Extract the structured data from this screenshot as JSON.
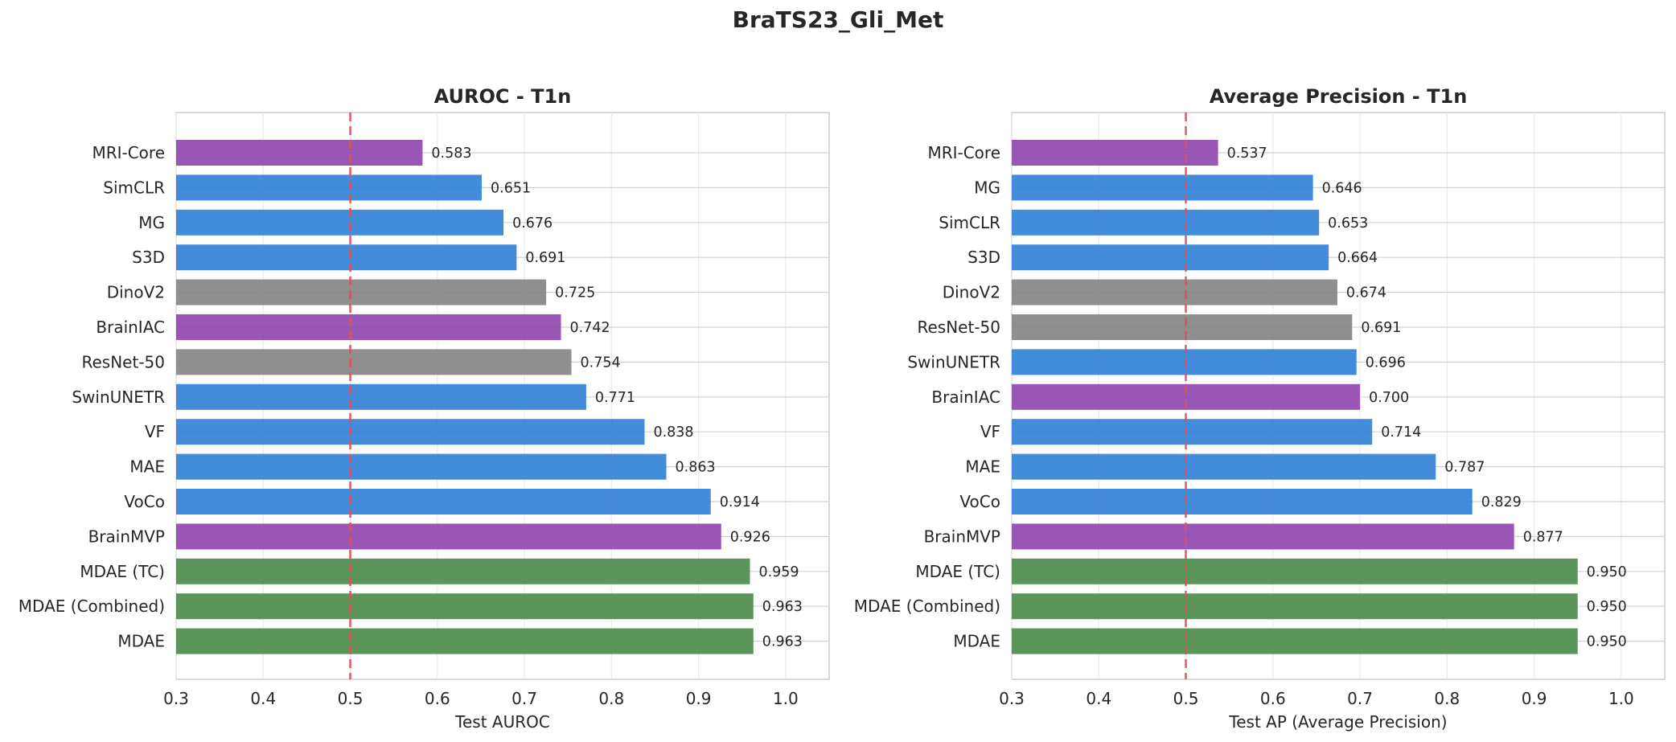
{
  "figure_title": "BraTS23_Gli_Met",
  "colors": {
    "purple": "#8e44ad",
    "blue": "#2f80d6",
    "gray": "#838383",
    "green": "#4a8a48",
    "baseline": "#e0505a"
  },
  "chart_data": [
    {
      "type": "bar",
      "orientation": "horizontal",
      "title": "AUROC - T1n",
      "xlabel": "Test AUROC",
      "ylabel": "",
      "xlim": [
        0.3,
        1.05
      ],
      "xticks": [
        "0.3",
        "0.4",
        "0.5",
        "0.6",
        "0.7",
        "0.8",
        "0.9",
        "1.0"
      ],
      "grid": true,
      "reference_line": 0.5,
      "categories": [
        "MRI-Core",
        "SimCLR",
        "MG",
        "S3D",
        "DinoV2",
        "BrainIAC",
        "ResNet-50",
        "SwinUNETR",
        "VF",
        "MAE",
        "VoCo",
        "BrainMVP",
        "MDAE (TC)",
        "MDAE (Combined)",
        "MDAE"
      ],
      "values": [
        0.583,
        0.651,
        0.676,
        0.691,
        0.725,
        0.742,
        0.754,
        0.771,
        0.838,
        0.863,
        0.914,
        0.926,
        0.959,
        0.963,
        0.963
      ],
      "value_labels": [
        "0.583",
        "0.651",
        "0.676",
        "0.691",
        "0.725",
        "0.742",
        "0.754",
        "0.771",
        "0.838",
        "0.863",
        "0.914",
        "0.926",
        "0.959",
        "0.963",
        "0.963"
      ],
      "bar_colors": [
        "purple",
        "blue",
        "blue",
        "blue",
        "gray",
        "purple",
        "gray",
        "blue",
        "blue",
        "blue",
        "blue",
        "purple",
        "green",
        "green",
        "green"
      ]
    },
    {
      "type": "bar",
      "orientation": "horizontal",
      "title": "Average Precision - T1n",
      "xlabel": "Test AP (Average Precision)",
      "ylabel": "",
      "xlim": [
        0.3,
        1.05
      ],
      "xticks": [
        "0.3",
        "0.4",
        "0.5",
        "0.6",
        "0.7",
        "0.8",
        "0.9",
        "1.0"
      ],
      "grid": true,
      "reference_line": 0.5,
      "categories": [
        "MRI-Core",
        "MG",
        "SimCLR",
        "S3D",
        "DinoV2",
        "ResNet-50",
        "SwinUNETR",
        "BrainIAC",
        "VF",
        "MAE",
        "VoCo",
        "BrainMVP",
        "MDAE (TC)",
        "MDAE (Combined)",
        "MDAE"
      ],
      "values": [
        0.537,
        0.646,
        0.653,
        0.664,
        0.674,
        0.691,
        0.696,
        0.7,
        0.714,
        0.787,
        0.829,
        0.877,
        0.95,
        0.95,
        0.95
      ],
      "value_labels": [
        "0.537",
        "0.646",
        "0.653",
        "0.664",
        "0.674",
        "0.691",
        "0.696",
        "0.700",
        "0.714",
        "0.787",
        "0.829",
        "0.877",
        "0.950",
        "0.950",
        "0.950"
      ],
      "bar_colors": [
        "purple",
        "blue",
        "blue",
        "blue",
        "gray",
        "gray",
        "blue",
        "purple",
        "blue",
        "blue",
        "blue",
        "purple",
        "green",
        "green",
        "green"
      ]
    }
  ]
}
